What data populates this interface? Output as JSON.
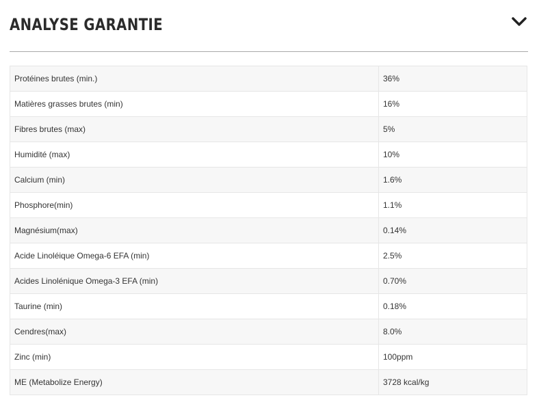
{
  "header": {
    "title": "ANALYSE GARANTIE"
  },
  "table": {
    "rows": [
      [
        "Protéines brutes (min.)",
        "36%"
      ],
      [
        "Matières grasses brutes (min)",
        "16%"
      ],
      [
        "Fibres brutes (max)",
        "5%"
      ],
      [
        "Humidité (max)",
        "10%"
      ],
      [
        "Calcium (min)",
        "1.6%"
      ],
      [
        "Phosphore(min)",
        "1.1%"
      ],
      [
        "Magnésium(max)",
        "0.14%"
      ],
      [
        "Acide Linoléique Omega-6 EFA (min)",
        "2.5%"
      ],
      [
        "Acides Linolénique Omega-3 EFA (min)",
        "0.70%"
      ],
      [
        "Taurine (min)",
        "0.18%"
      ],
      [
        "Cendres(max)",
        "8.0%"
      ],
      [
        "Zinc (min)",
        "100ppm"
      ],
      [
        "ME (Metabolize Energy)",
        "3728 kcal/kg"
      ]
    ]
  }
}
